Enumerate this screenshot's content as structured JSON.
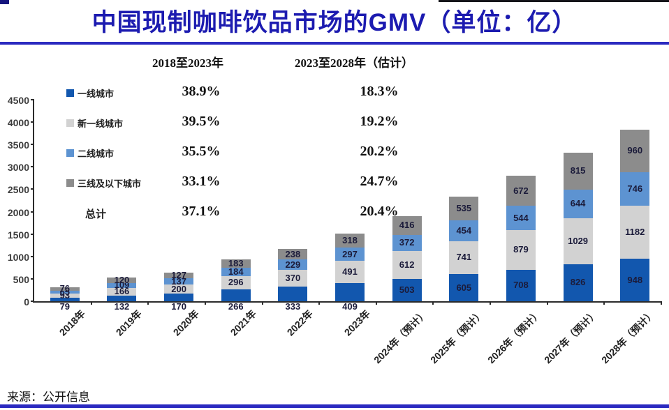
{
  "page": {
    "title": "中国现制咖啡饮品市场的GMV（单位：亿）",
    "source": "来源：公开信息"
  },
  "period_headers": {
    "left": "2018至2023年",
    "right": "2023至2028年（估计）"
  },
  "cagr_table": {
    "rows": [
      {
        "label": "一线城市",
        "swatch": "#1257AE",
        "left": "38.9%",
        "right": "18.3%"
      },
      {
        "label": "新一线城市",
        "swatch": "#D2D2D2",
        "left": "39.5%",
        "right": "19.2%"
      },
      {
        "label": "二线城市",
        "swatch": "#5D93D1",
        "left": "35.5%",
        "right": "20.2%"
      },
      {
        "label": "三线及以下城市",
        "swatch": "#8C8C8C",
        "left": "33.1%",
        "right": "24.7%"
      },
      {
        "label": "总计",
        "swatch": null,
        "left": "37.1%",
        "right": "20.4%"
      }
    ]
  },
  "chart_data": {
    "type": "bar",
    "stacked": true,
    "title": "中国现制咖啡饮品市场的GMV（单位：亿）",
    "xlabel": "",
    "ylabel": "",
    "ylim": [
      0,
      4500
    ],
    "yticks": [
      0,
      500,
      1000,
      1500,
      2000,
      2500,
      3000,
      3500,
      4000,
      4500
    ],
    "grid": false,
    "legend_position": "top-left-inside",
    "categories": [
      "2018年",
      "2019年",
      "2020年",
      "2021年",
      "2022年",
      "2023年",
      "2024年（预计）",
      "2025年（预计）",
      "2026年（预计）",
      "2027年（预计）",
      "2028年（预计）"
    ],
    "series": [
      {
        "name": "一线城市",
        "color": "#1257AE",
        "values": [
          79,
          132,
          170,
          266,
          333,
          409,
          503,
          605,
          708,
          826,
          948
        ]
      },
      {
        "name": "新一线城市",
        "color": "#D2D2D2",
        "values": [
          93,
          166,
          200,
          296,
          370,
          491,
          612,
          741,
          879,
          1029,
          1182
        ]
      },
      {
        "name": "二线城市",
        "color": "#5D93D1",
        "values": [
          65,
          109,
          137,
          184,
          229,
          297,
          372,
          454,
          544,
          644,
          746
        ]
      },
      {
        "name": "三线及以下城市",
        "color": "#8C8C8C",
        "values": [
          76,
          120,
          127,
          183,
          238,
          318,
          416,
          535,
          672,
          815,
          960
        ]
      }
    ],
    "colors": {
      "tier1": "#1257AE",
      "new_tier1": "#D2D2D2",
      "tier2": "#5D93D1",
      "tier3_below": "#8C8C8C",
      "title_blue": "#1c1bb0",
      "rule_blue": "#2b2ac0"
    }
  }
}
